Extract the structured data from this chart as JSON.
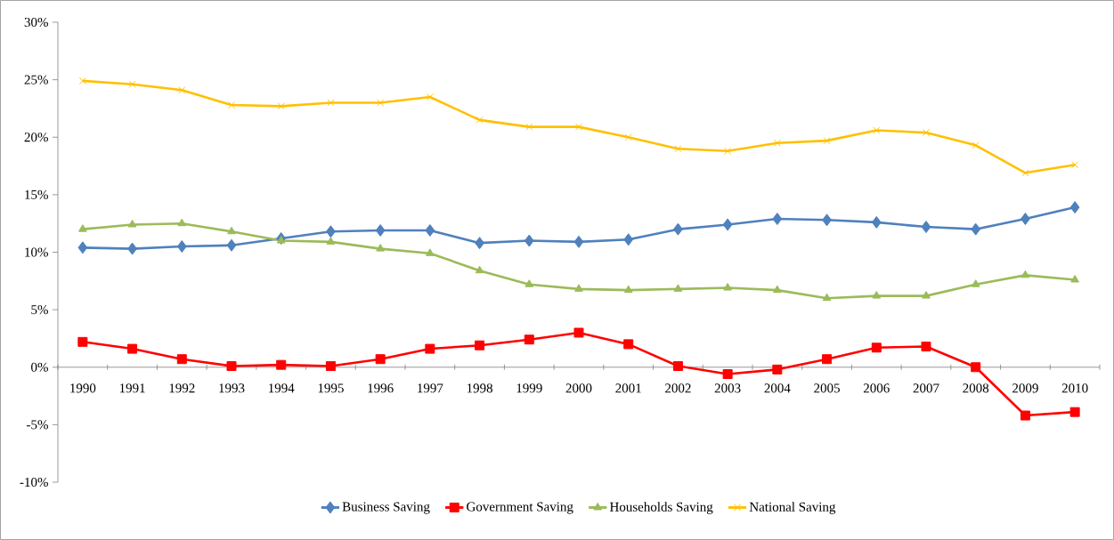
{
  "chart_data": {
    "type": "line",
    "categories": [
      "1990",
      "1991",
      "1992",
      "1993",
      "1994",
      "1995",
      "1996",
      "1997",
      "1998",
      "1999",
      "2000",
      "2001",
      "2002",
      "2003",
      "2004",
      "2005",
      "2006",
      "2007",
      "2008",
      "2009",
      "2010"
    ],
    "ylim": [
      -10,
      30
    ],
    "yticks": [
      {
        "value": -10,
        "label": "-10%"
      },
      {
        "value": -5,
        "label": "-5%"
      },
      {
        "value": 0,
        "label": "0%"
      },
      {
        "value": 5,
        "label": "5%"
      },
      {
        "value": 10,
        "label": "10%"
      },
      {
        "value": 15,
        "label": "15%"
      },
      {
        "value": 20,
        "label": "20%"
      },
      {
        "value": 25,
        "label": "25%"
      },
      {
        "value": 30,
        "label": "30%"
      }
    ],
    "legend": "bottom",
    "series": [
      {
        "name": "Business Saving",
        "color": "#4f81bd",
        "marker": "diamond",
        "values": [
          10.4,
          10.3,
          10.5,
          10.6,
          11.2,
          11.8,
          11.9,
          11.9,
          10.8,
          11.0,
          10.9,
          11.1,
          12.0,
          12.4,
          12.9,
          12.8,
          12.6,
          12.2,
          12.0,
          12.9,
          13.9
        ]
      },
      {
        "name": "Government Saving",
        "color": "#ff0000",
        "marker": "square",
        "values": [
          2.2,
          1.6,
          0.7,
          0.1,
          0.2,
          0.1,
          0.7,
          1.6,
          1.9,
          2.4,
          3.0,
          2.0,
          0.1,
          -0.6,
          -0.2,
          0.7,
          1.7,
          1.8,
          0.0,
          -4.2,
          -3.9
        ]
      },
      {
        "name": "Households Saving",
        "color": "#9bbb59",
        "marker": "triangle",
        "values": [
          12.0,
          12.4,
          12.5,
          11.8,
          11.0,
          10.9,
          10.3,
          9.9,
          8.4,
          7.2,
          6.8,
          6.7,
          6.8,
          6.9,
          6.7,
          6.0,
          6.2,
          6.2,
          7.2,
          8.0,
          7.6
        ]
      },
      {
        "name": "National Saving",
        "color": "#ffc000",
        "marker": "cross",
        "values": [
          24.9,
          24.6,
          24.1,
          22.8,
          22.7,
          23.0,
          23.0,
          23.5,
          21.5,
          20.9,
          20.9,
          20.0,
          19.0,
          18.8,
          19.5,
          19.7,
          20.6,
          20.4,
          19.3,
          16.9,
          17.6
        ]
      }
    ]
  }
}
